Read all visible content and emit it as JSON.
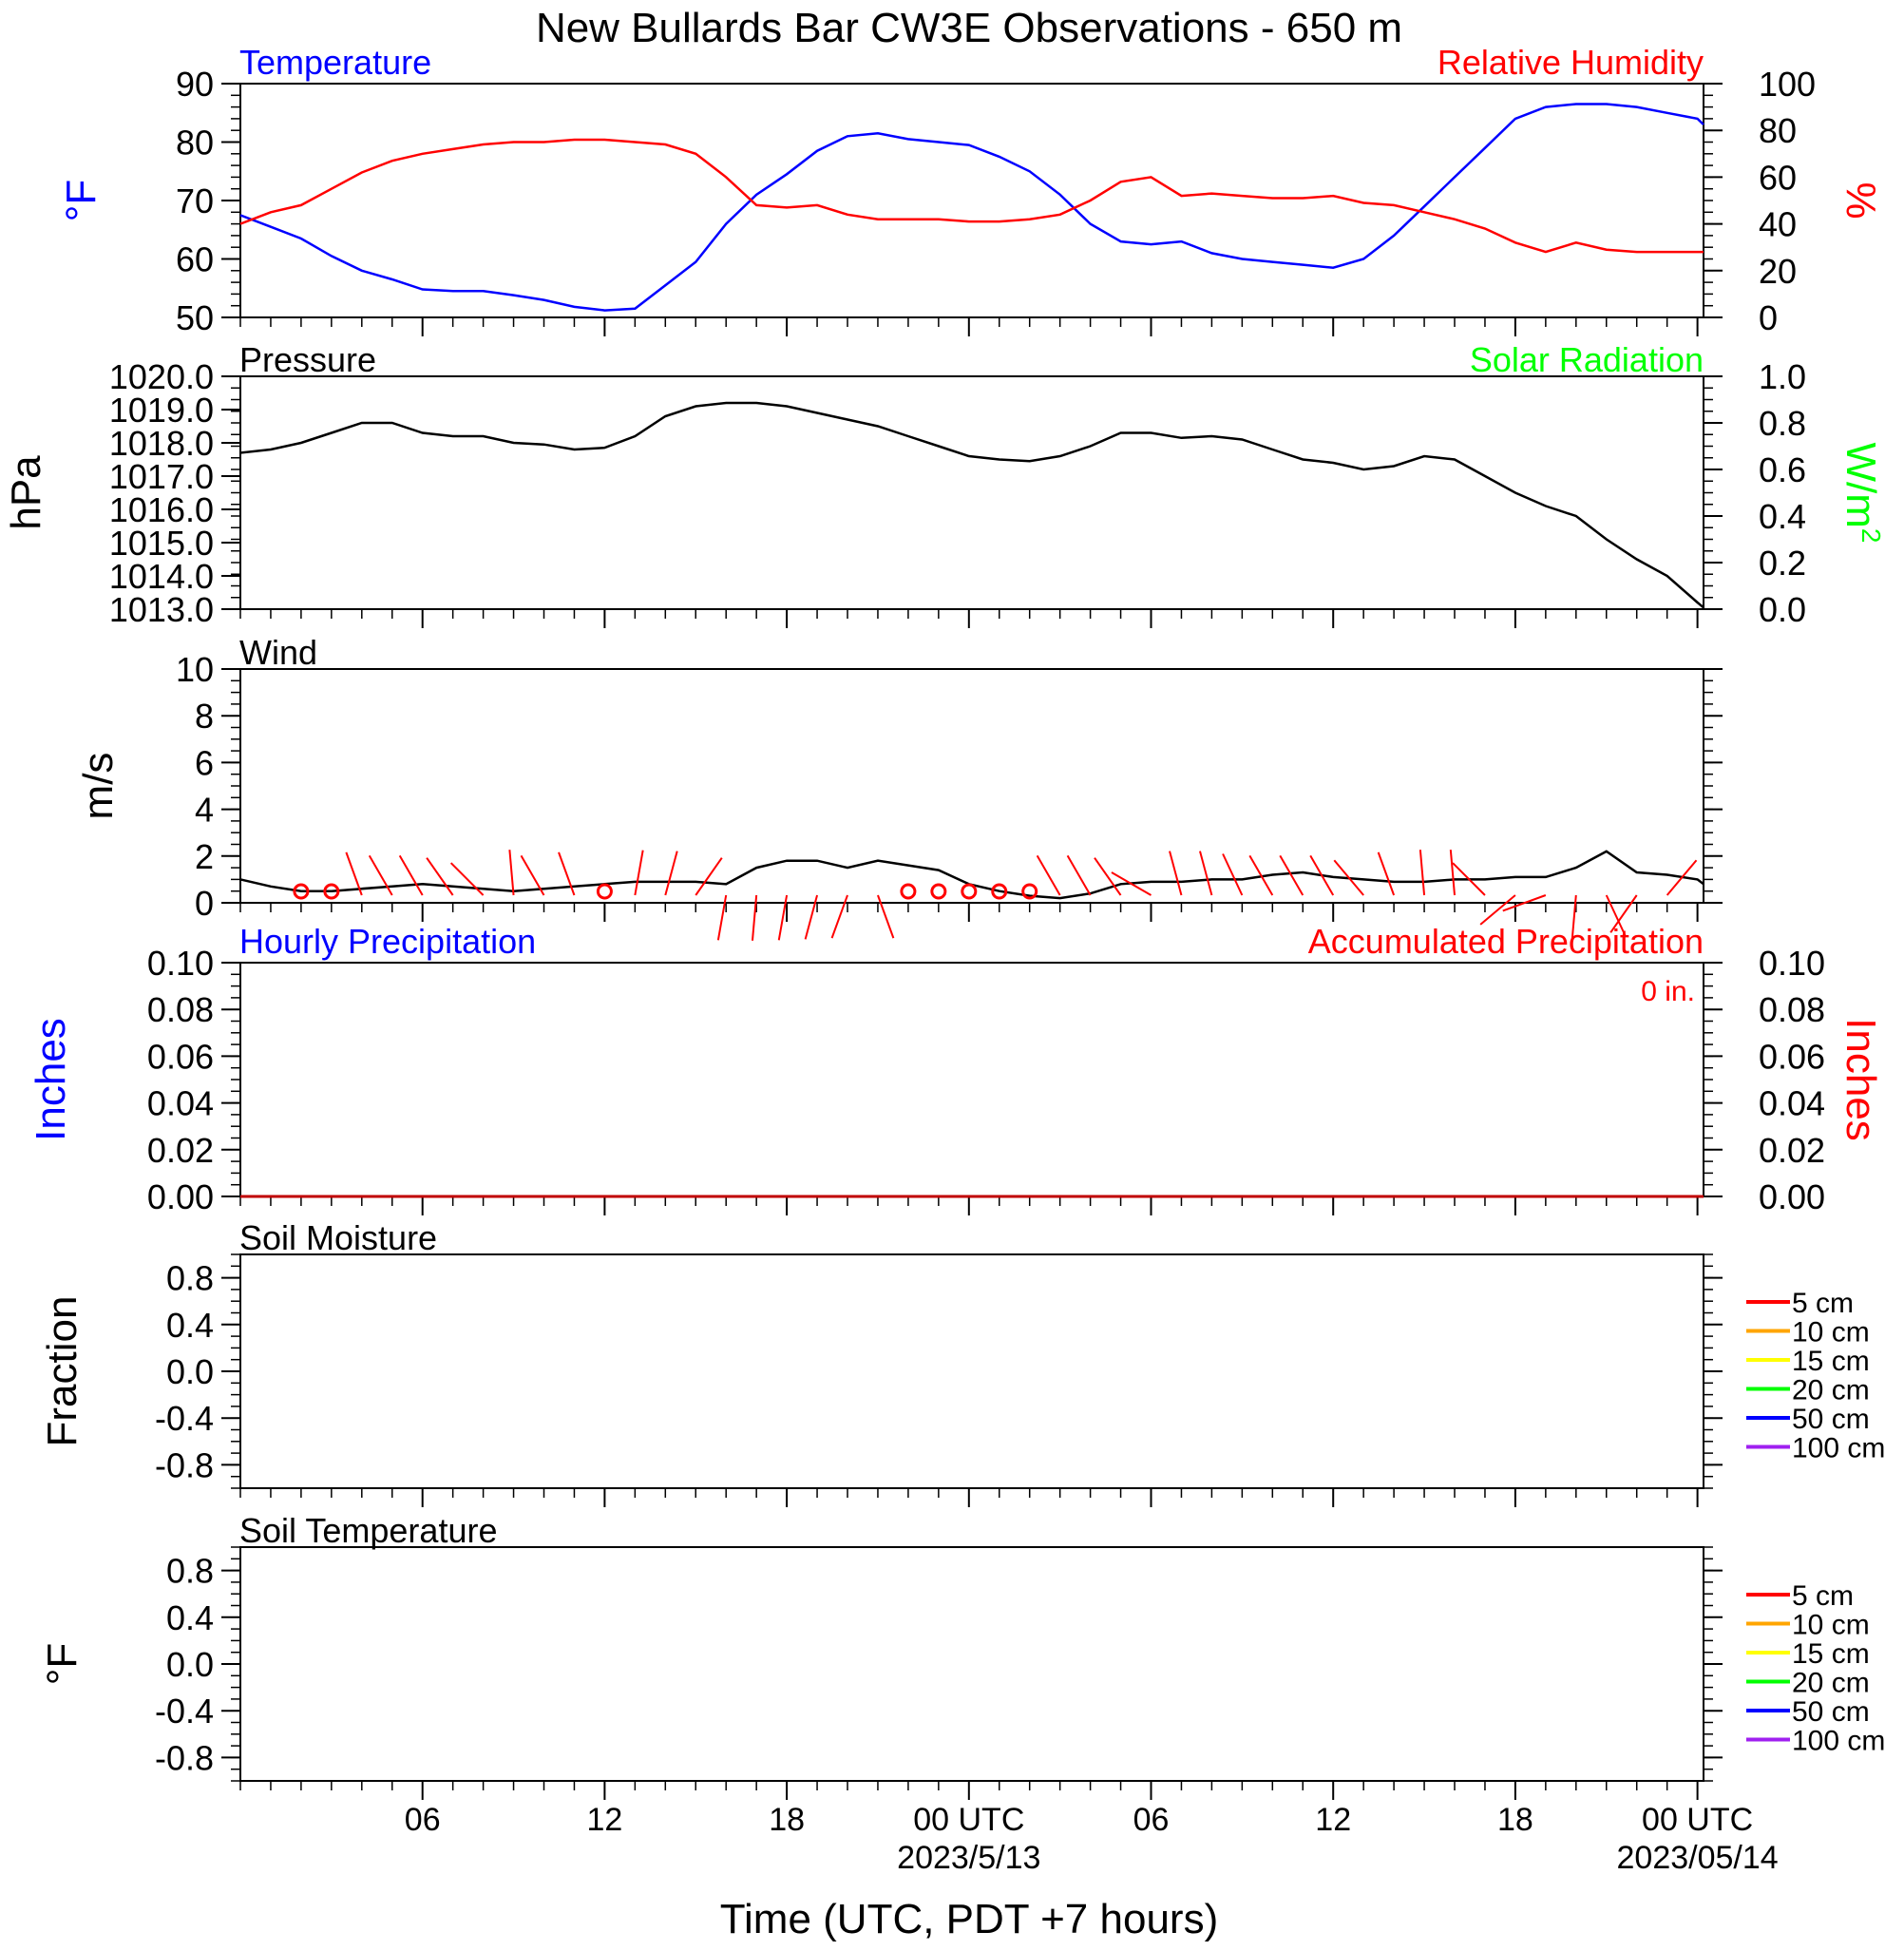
{
  "title": "New Bullards Bar CW3E Observations - 650 m",
  "xlabel": "Time (UTC, PDT +7 hours)",
  "x_ticks": [
    {
      "hour": 6,
      "label": "06",
      "sub": ""
    },
    {
      "hour": 12,
      "label": "12",
      "sub": ""
    },
    {
      "hour": 18,
      "label": "18",
      "sub": ""
    },
    {
      "hour": 24,
      "label": "00 UTC",
      "sub": "2023/5/13"
    },
    {
      "hour": 30,
      "label": "06",
      "sub": ""
    },
    {
      "hour": 36,
      "label": "12",
      "sub": ""
    },
    {
      "hour": 42,
      "label": "18",
      "sub": ""
    },
    {
      "hour": 48,
      "label": "00 UTC",
      "sub": "2023/05/14"
    }
  ],
  "colors": {
    "temperature": "#0000ff",
    "humidity": "#ff0000",
    "pressure": "#000000",
    "solar": "#00ff00",
    "wind": "#000000",
    "barbs": "#ff0000"
  },
  "chart_data": [
    {
      "type": "line",
      "panel": "temperature-humidity",
      "left_title": "Temperature",
      "right_title": "Relative Humidity",
      "ylabel_left": "°F",
      "ylabel_right": "%",
      "xlim": [
        0,
        48.2
      ],
      "ylim_left": [
        50,
        90
      ],
      "ylim_right": [
        0,
        100
      ],
      "yticks_left": [
        "50",
        "60",
        "70",
        "80",
        "90"
      ],
      "yticks_right": [
        "0",
        "20",
        "40",
        "60",
        "80",
        "100"
      ],
      "series": [
        {
          "name": "Temperature",
          "axis": "left",
          "x": [
            0,
            1,
            2,
            3,
            4,
            5,
            6,
            7,
            8,
            9,
            10,
            11,
            12,
            13,
            14,
            15,
            16,
            17,
            18,
            19,
            20,
            21,
            22,
            23,
            24,
            25,
            26,
            27,
            28,
            29,
            30,
            31,
            32,
            33,
            34,
            35,
            36,
            37,
            38,
            39,
            40,
            41,
            42,
            43,
            44,
            45,
            46,
            47,
            48,
            48.2
          ],
          "values": [
            67.5,
            65.5,
            63.5,
            60.5,
            58,
            56.5,
            54.8,
            54.5,
            54.5,
            53.8,
            53,
            51.8,
            51.2,
            51.5,
            55.5,
            59.5,
            66,
            71,
            74.5,
            78.5,
            81,
            81.5,
            80.5,
            80,
            79.5,
            77.5,
            75,
            71,
            66,
            63,
            62.5,
            63,
            61,
            60,
            59.5,
            59,
            58.5,
            60,
            64,
            69,
            74,
            79,
            84,
            86,
            86.5,
            86.5,
            86,
            85,
            84,
            83
          ]
        },
        {
          "name": "Relative Humidity",
          "axis": "right",
          "x": [
            0,
            1,
            2,
            3,
            4,
            5,
            6,
            7,
            8,
            9,
            10,
            11,
            12,
            13,
            14,
            15,
            16,
            17,
            18,
            19,
            20,
            21,
            22,
            23,
            24,
            25,
            26,
            27,
            28,
            29,
            30,
            31,
            32,
            33,
            34,
            35,
            36,
            37,
            38,
            39,
            40,
            41,
            42,
            43,
            44,
            45,
            46,
            47,
            48,
            48.2
          ],
          "values": [
            40,
            45,
            48,
            55,
            62,
            67,
            70,
            72,
            74,
            75,
            75,
            76,
            76,
            75,
            74,
            70,
            60,
            48,
            47,
            48,
            44,
            42,
            42,
            42,
            41,
            41,
            42,
            44,
            50,
            58,
            60,
            52,
            53,
            52,
            51,
            51,
            52,
            49,
            48,
            45,
            42,
            38,
            32,
            28,
            32,
            29,
            28,
            28,
            28,
            28
          ]
        }
      ]
    },
    {
      "type": "line",
      "panel": "pressure-solar",
      "left_title": "Pressure",
      "right_title": "Solar Radiation",
      "ylabel_left": "hPa",
      "ylabel_right": "W/m",
      "ylabel_right_sup": "2",
      "xlim": [
        0,
        48.2
      ],
      "ylim_left": [
        1013,
        1020
      ],
      "ylim_right": [
        0,
        1
      ],
      "yticks_left": [
        "1013.0",
        "1014.0",
        "1015.0",
        "1016.0",
        "1017.0",
        "1018.0",
        "1019.0",
        "1020.0"
      ],
      "yticks_right": [
        "0.0",
        "0.2",
        "0.4",
        "0.6",
        "0.8",
        "1.0"
      ],
      "series": [
        {
          "name": "Pressure",
          "axis": "left",
          "x": [
            0,
            1,
            2,
            3,
            4,
            5,
            6,
            7,
            8,
            9,
            10,
            11,
            12,
            13,
            14,
            15,
            16,
            17,
            18,
            19,
            20,
            21,
            22,
            23,
            24,
            25,
            26,
            27,
            28,
            29,
            30,
            31,
            32,
            33,
            34,
            35,
            36,
            37,
            38,
            39,
            40,
            41,
            42,
            43,
            44,
            45,
            46,
            47,
            48,
            48.2
          ],
          "values": [
            1017.7,
            1017.8,
            1018.0,
            1018.3,
            1018.6,
            1018.6,
            1018.3,
            1018.2,
            1018.2,
            1018.0,
            1017.95,
            1017.8,
            1017.85,
            1018.2,
            1018.8,
            1019.1,
            1019.2,
            1019.2,
            1019.1,
            1018.9,
            1018.7,
            1018.5,
            1018.2,
            1017.9,
            1017.6,
            1017.5,
            1017.45,
            1017.6,
            1017.9,
            1018.3,
            1018.3,
            1018.15,
            1018.2,
            1018.1,
            1017.8,
            1017.5,
            1017.4,
            1017.2,
            1017.3,
            1017.6,
            1017.5,
            1017.0,
            1016.5,
            1016.1,
            1015.8,
            1015.1,
            1014.5,
            1014.0,
            1013.2,
            1013.05
          ]
        }
      ]
    },
    {
      "type": "line",
      "panel": "wind",
      "left_title": "Wind",
      "ylabel_left": "m/s",
      "xlim": [
        0,
        48.2
      ],
      "ylim_left": [
        0,
        10
      ],
      "yticks_left": [
        "0",
        "2",
        "4",
        "6",
        "8",
        "10"
      ],
      "series": [
        {
          "name": "Wind",
          "x": [
            0,
            1,
            2,
            3,
            4,
            5,
            6,
            7,
            8,
            9,
            10,
            11,
            12,
            13,
            14,
            15,
            16,
            17,
            18,
            19,
            20,
            21,
            22,
            23,
            24,
            25,
            26,
            27,
            28,
            29,
            30,
            31,
            32,
            33,
            34,
            35,
            36,
            37,
            38,
            39,
            40,
            41,
            42,
            43,
            44,
            45,
            46,
            47,
            48,
            48.2
          ],
          "values": [
            1.0,
            0.7,
            0.5,
            0.5,
            0.6,
            0.7,
            0.8,
            0.7,
            0.6,
            0.5,
            0.6,
            0.7,
            0.8,
            0.9,
            0.9,
            0.9,
            0.8,
            1.5,
            1.8,
            1.8,
            1.5,
            1.8,
            1.6,
            1.4,
            0.8,
            0.5,
            0.3,
            0.2,
            0.4,
            0.8,
            0.9,
            0.9,
            1.0,
            1.0,
            1.2,
            1.3,
            1.1,
            1.0,
            0.9,
            0.9,
            1.0,
            1.0,
            1.1,
            1.1,
            1.5,
            2.2,
            1.3,
            1.2,
            1.0,
            0.8
          ]
        }
      ],
      "barbs": [
        {
          "x": 2.0,
          "calm": true
        },
        {
          "x": 3.0,
          "calm": true
        },
        {
          "x": 4.0,
          "dir": 340
        },
        {
          "x": 5.0,
          "dir": 330
        },
        {
          "x": 6.0,
          "dir": 330
        },
        {
          "x": 7.0,
          "dir": 325
        },
        {
          "x": 8.0,
          "dir": 315
        },
        {
          "x": 9.0,
          "dir": 355
        },
        {
          "x": 10.0,
          "dir": 330
        },
        {
          "x": 11.0,
          "dir": 340
        },
        {
          "x": 12.0,
          "calm": true
        },
        {
          "x": 13.0,
          "dir": 10
        },
        {
          "x": 14.0,
          "dir": 15
        },
        {
          "x": 15.0,
          "dir": 35
        },
        {
          "x": 16.0,
          "dir": 190
        },
        {
          "x": 17.0,
          "dir": 185
        },
        {
          "x": 18.0,
          "dir": 190
        },
        {
          "x": 19.0,
          "dir": 195
        },
        {
          "x": 20.0,
          "dir": 200
        },
        {
          "x": 21.0,
          "dir": 160
        },
        {
          "x": 22.0,
          "calm": true
        },
        {
          "x": 23.0,
          "calm": true
        },
        {
          "x": 24.0,
          "calm": true
        },
        {
          "x": 25.0,
          "calm": true
        },
        {
          "x": 26.0,
          "calm": true
        },
        {
          "x": 27.0,
          "dir": 330
        },
        {
          "x": 28.0,
          "dir": 330
        },
        {
          "x": 29.0,
          "dir": 325
        },
        {
          "x": 30.0,
          "dir": 300
        },
        {
          "x": 31.0,
          "dir": 345
        },
        {
          "x": 32.0,
          "dir": 345
        },
        {
          "x": 33.0,
          "dir": 335
        },
        {
          "x": 34.0,
          "dir": 330
        },
        {
          "x": 35.0,
          "dir": 330
        },
        {
          "x": 36.0,
          "dir": 330
        },
        {
          "x": 37.0,
          "dir": 320
        },
        {
          "x": 38.0,
          "dir": 340
        },
        {
          "x": 39.0,
          "dir": 355
        },
        {
          "x": 40.0,
          "dir": 355
        },
        {
          "x": 41.0,
          "dir": 315
        },
        {
          "x": 42.0,
          "dir": 230
        },
        {
          "x": 43.0,
          "dir": 250
        },
        {
          "x": 44.0,
          "dir": 185
        },
        {
          "x": 45.0,
          "dir": 155
        },
        {
          "x": 46.0,
          "dir": 215
        },
        {
          "x": 47.0,
          "dir": 40
        }
      ]
    },
    {
      "type": "line",
      "panel": "precipitation",
      "left_title": "Hourly Precipitation",
      "right_title": "Accumulated Precipitation",
      "annotation": "0 in.",
      "ylabel_left": "Inches",
      "ylabel_right": "Inches",
      "xlim": [
        0,
        48.2
      ],
      "ylim_left": [
        0,
        0.1
      ],
      "ylim_right": [
        0,
        0.1
      ],
      "yticks_left": [
        "0.00",
        "0.02",
        "0.04",
        "0.06",
        "0.08",
        "0.10"
      ],
      "yticks_right": [
        "0.00",
        "0.02",
        "0.04",
        "0.06",
        "0.08",
        "0.10"
      ],
      "series": [
        {
          "name": "Accumulated Precipitation",
          "x": [
            0,
            48.2
          ],
          "values": [
            0,
            0
          ]
        }
      ]
    },
    {
      "type": "line",
      "panel": "soil-moisture",
      "left_title": "Soil Moisture",
      "ylabel_left": "Fraction",
      "xlim": [
        0,
        48.2
      ],
      "ylim_left": [
        -1,
        1
      ],
      "yticks_left": [
        "-0.8",
        "-0.4",
        "0.0",
        "0.4",
        "0.8"
      ],
      "legend": [
        {
          "label": "5 cm",
          "color": "#ff0000"
        },
        {
          "label": "10 cm",
          "color": "#ffa500"
        },
        {
          "label": "15 cm",
          "color": "#ffff00"
        },
        {
          "label": "20 cm",
          "color": "#00ff00"
        },
        {
          "label": "50 cm",
          "color": "#0000ff"
        },
        {
          "label": "100 cm",
          "color": "#a020f0"
        }
      ]
    },
    {
      "type": "line",
      "panel": "soil-temperature",
      "left_title": "Soil Temperature",
      "ylabel_left": "°F",
      "xlim": [
        0,
        48.2
      ],
      "ylim_left": [
        -1,
        1
      ],
      "yticks_left": [
        "-0.8",
        "-0.4",
        "0.0",
        "0.4",
        "0.8"
      ],
      "legend": [
        {
          "label": "5 cm",
          "color": "#ff0000"
        },
        {
          "label": "10 cm",
          "color": "#ffa500"
        },
        {
          "label": "15 cm",
          "color": "#ffff00"
        },
        {
          "label": "20 cm",
          "color": "#00ff00"
        },
        {
          "label": "50 cm",
          "color": "#0000ff"
        },
        {
          "label": "100 cm",
          "color": "#a020f0"
        }
      ]
    }
  ]
}
